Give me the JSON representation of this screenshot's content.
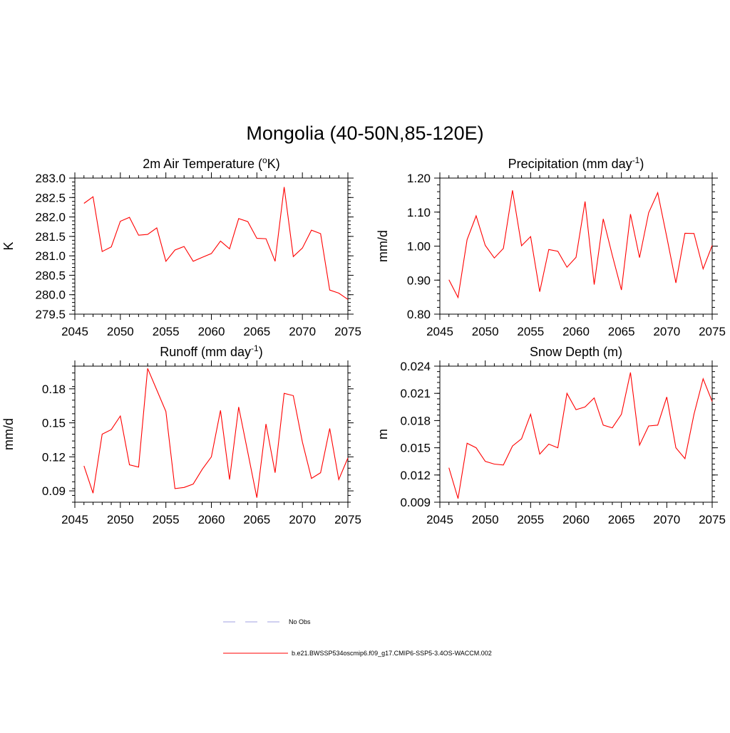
{
  "figure_title": "Mongolia (40-50N,85-120E)",
  "legend": {
    "items": [
      {
        "label": "No Obs",
        "style": "dashed",
        "color": "#a0a0e0"
      },
      {
        "label": "b.e21.BWSSP534oscmip6.f09_g17.CMIP6-SSP5-3.4OS-WACCM.002",
        "style": "solid",
        "color": "#ff0000"
      }
    ]
  },
  "chart_data": [
    {
      "type": "line",
      "title": "2m Air Temperature (",
      "title_sup": "o",
      "title_after": "K)",
      "xlabel": "",
      "ylabel": "K",
      "xlim": [
        2045,
        2075
      ],
      "ylim": [
        279.5,
        283.0
      ],
      "x_ticks": [
        2045,
        2050,
        2055,
        2060,
        2065,
        2070,
        2075
      ],
      "x_tick_labels": [
        "2045",
        "2050",
        "2055",
        "2060",
        "2065",
        "2070",
        "2075"
      ],
      "y_ticks": [
        279.5,
        280.0,
        280.5,
        281.0,
        281.5,
        282.0,
        282.5,
        283.0
      ],
      "y_tick_labels": [
        "279.5",
        "280.0",
        "280.5",
        "281.0",
        "281.5",
        "282.0",
        "282.5",
        "283.0"
      ],
      "y_minor_step": 0.1,
      "series": [
        {
          "name": "b.e21.BWSSP534oscmip6.f09_g17.CMIP6-SSP5-3.4OS-WACCM.002",
          "color": "#ff0000",
          "x": [
            2046,
            2047,
            2048,
            2049,
            2050,
            2051,
            2052,
            2053,
            2054,
            2055,
            2056,
            2057,
            2058,
            2059,
            2060,
            2061,
            2062,
            2063,
            2064,
            2065,
            2066,
            2067,
            2068,
            2069,
            2070,
            2071,
            2072,
            2073,
            2074,
            2075
          ],
          "values": [
            282.35,
            282.52,
            281.11,
            281.23,
            281.89,
            281.99,
            281.53,
            281.55,
            281.72,
            280.86,
            281.15,
            281.24,
            280.86,
            280.96,
            281.06,
            281.38,
            281.18,
            281.96,
            281.88,
            281.45,
            281.44,
            280.86,
            282.77,
            280.98,
            281.2,
            281.66,
            281.57,
            280.12,
            280.04,
            279.88
          ]
        }
      ]
    },
    {
      "type": "line",
      "title": "Precipitation (mm day",
      "title_sup": "-1",
      "title_after": ")",
      "xlabel": "",
      "ylabel": "mm/d",
      "xlim": [
        2045,
        2075
      ],
      "ylim": [
        0.8,
        1.2
      ],
      "x_ticks": [
        2045,
        2050,
        2055,
        2060,
        2065,
        2070,
        2075
      ],
      "x_tick_labels": [
        "2045",
        "2050",
        "2055",
        "2060",
        "2065",
        "2070",
        "2075"
      ],
      "y_ticks": [
        0.8,
        0.9,
        1.0,
        1.1,
        1.2
      ],
      "y_tick_labels": [
        "0.80",
        "0.90",
        "1.00",
        "1.10",
        "1.20"
      ],
      "y_minor_step": 0.02,
      "series": [
        {
          "name": "b.e21.BWSSP534oscmip6.f09_g17.CMIP6-SSP5-3.4OS-WACCM.002",
          "color": "#ff0000",
          "x": [
            2046,
            2047,
            2048,
            2049,
            2050,
            2051,
            2052,
            2053,
            2054,
            2055,
            2056,
            2057,
            2058,
            2059,
            2060,
            2061,
            2062,
            2063,
            2064,
            2065,
            2066,
            2067,
            2068,
            2069,
            2070,
            2071,
            2072,
            2073,
            2074,
            2075
          ],
          "values": [
            0.901,
            0.849,
            1.019,
            1.089,
            1.002,
            0.965,
            0.993,
            1.164,
            1.001,
            1.028,
            0.866,
            0.99,
            0.985,
            0.938,
            0.967,
            1.131,
            0.887,
            1.08,
            0.973,
            0.871,
            1.094,
            0.966,
            1.098,
            1.157,
            1.027,
            0.892,
            1.038,
            1.037,
            0.933,
            1.002
          ]
        }
      ]
    },
    {
      "type": "line",
      "title": "Runoff (mm day",
      "title_sup": "-1",
      "title_after": ")",
      "xlabel": "",
      "ylabel": "mm/d",
      "xlim": [
        2045,
        2075
      ],
      "ylim": [
        0.08,
        0.2
      ],
      "x_ticks": [
        2045,
        2050,
        2055,
        2060,
        2065,
        2070,
        2075
      ],
      "x_tick_labels": [
        "2045",
        "2050",
        "2055",
        "2060",
        "2065",
        "2070",
        "2075"
      ],
      "y_ticks": [
        0.09,
        0.12,
        0.15,
        0.18
      ],
      "y_tick_labels": [
        "0.09",
        "0.12",
        "0.15",
        "0.18"
      ],
      "y_minor_step": 0.006,
      "series": [
        {
          "name": "b.e21.BWSSP534oscmip6.f09_g17.CMIP6-SSP5-3.4OS-WACCM.002",
          "color": "#ff0000",
          "x": [
            2046,
            2047,
            2048,
            2049,
            2050,
            2051,
            2052,
            2053,
            2054,
            2055,
            2056,
            2057,
            2058,
            2059,
            2060,
            2061,
            2062,
            2063,
            2064,
            2065,
            2066,
            2067,
            2068,
            2069,
            2070,
            2071,
            2072,
            2073,
            2074,
            2075
          ],
          "values": [
            0.112,
            0.088,
            0.14,
            0.144,
            0.156,
            0.113,
            0.111,
            0.198,
            0.179,
            0.16,
            0.092,
            0.093,
            0.096,
            0.109,
            0.12,
            0.161,
            0.1,
            0.164,
            0.124,
            0.084,
            0.149,
            0.106,
            0.176,
            0.174,
            0.133,
            0.101,
            0.106,
            0.145,
            0.1,
            0.119
          ]
        }
      ]
    },
    {
      "type": "line",
      "title": "Snow Depth (m)",
      "title_sup": "",
      "title_after": "",
      "xlabel": "",
      "ylabel": "m",
      "xlim": [
        2045,
        2075
      ],
      "ylim": [
        0.009,
        0.024
      ],
      "x_ticks": [
        2045,
        2050,
        2055,
        2060,
        2065,
        2070,
        2075
      ],
      "x_tick_labels": [
        "2045",
        "2050",
        "2055",
        "2060",
        "2065",
        "2070",
        "2075"
      ],
      "y_ticks": [
        0.009,
        0.012,
        0.015,
        0.018,
        0.021,
        0.024
      ],
      "y_tick_labels": [
        "0.009",
        "0.012",
        "0.015",
        "0.018",
        "0.021",
        "0.024"
      ],
      "y_minor_step": 0.0006,
      "series": [
        {
          "name": "b.e21.BWSSP534oscmip6.f09_g17.CMIP6-SSP5-3.4OS-WACCM.002",
          "color": "#ff0000",
          "x": [
            2046,
            2047,
            2048,
            2049,
            2050,
            2051,
            2052,
            2053,
            2054,
            2055,
            2056,
            2057,
            2058,
            2059,
            2060,
            2061,
            2062,
            2063,
            2064,
            2065,
            2066,
            2067,
            2068,
            2069,
            2070,
            2071,
            2072,
            2073,
            2074,
            2075
          ],
          "values": [
            0.0128,
            0.0094,
            0.0155,
            0.015,
            0.0135,
            0.0132,
            0.0131,
            0.0152,
            0.016,
            0.0187,
            0.0143,
            0.0154,
            0.015,
            0.021,
            0.0192,
            0.0195,
            0.0205,
            0.0175,
            0.0172,
            0.0187,
            0.0233,
            0.0153,
            0.0174,
            0.0175,
            0.0206,
            0.015,
            0.0138,
            0.0187,
            0.0226,
            0.0201
          ]
        }
      ]
    }
  ]
}
